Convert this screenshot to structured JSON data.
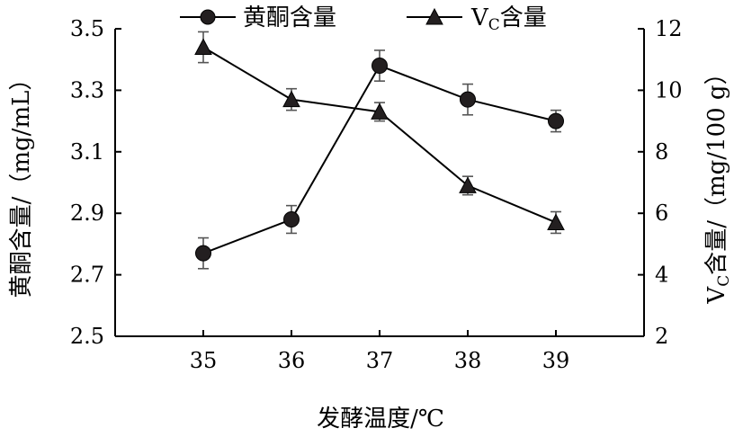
{
  "chart_data": {
    "type": "line",
    "title": "",
    "xlabel": "发酵温度/℃",
    "ylabel_left": "黄酮含量/（mg/mL）",
    "ylabel_right_main": "V",
    "ylabel_right_sub": "C",
    "ylabel_right_rest": "含量/（mg/100 g）",
    "categories": [
      "35",
      "36",
      "37",
      "38",
      "39"
    ],
    "x": [
      35,
      36,
      37,
      38,
      39
    ],
    "xlim": [
      34,
      40
    ],
    "ylim_left": [
      2.5,
      3.5
    ],
    "yticks_left": [
      "2.5",
      "2.7",
      "2.9",
      "3.1",
      "3.3",
      "3.5"
    ],
    "ylim_right": [
      2,
      12
    ],
    "yticks_right": [
      "2",
      "4",
      "6",
      "8",
      "10",
      "12"
    ],
    "grid": false,
    "legend_position": "top",
    "series": [
      {
        "name": "黄酮含量",
        "axis": "left",
        "marker": "circle",
        "values": [
          2.77,
          2.88,
          3.38,
          3.27,
          3.2
        ],
        "errors": [
          0.05,
          0.045,
          0.05,
          0.05,
          0.035
        ]
      },
      {
        "name": "Vc含量",
        "name_main": "V",
        "name_sub": "C",
        "name_rest": "含量",
        "axis": "right",
        "marker": "triangle",
        "values": [
          11.4,
          9.7,
          9.3,
          6.9,
          5.7
        ],
        "errors": [
          0.5,
          0.35,
          0.3,
          0.3,
          0.35
        ]
      }
    ]
  }
}
